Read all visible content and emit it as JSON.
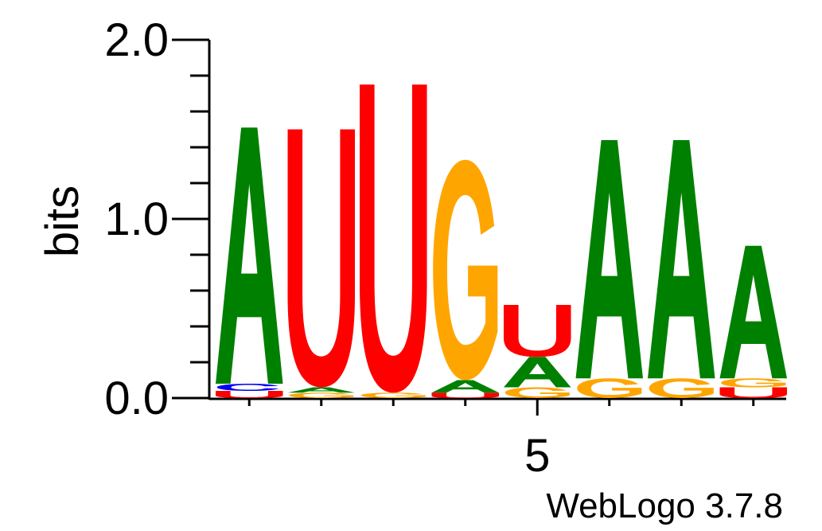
{
  "chart_data": {
    "type": "sequence-logo",
    "ylabel": "bits",
    "ylim": [
      0,
      2.0
    ],
    "y_ticks": [
      {
        "value": 0.0,
        "label": "0.0"
      },
      {
        "value": 1.0,
        "label": "1.0"
      },
      {
        "value": 2.0,
        "label": "2.0"
      }
    ],
    "x_ticks": [
      {
        "value": 5,
        "label": "5"
      }
    ],
    "colors": {
      "A": "#008000",
      "U": "#ff0000",
      "G": "#ffa500",
      "C": "#0000ff"
    },
    "positions": [
      {
        "pos": 1,
        "stack": [
          {
            "letter": "U",
            "bits": 0.04
          },
          {
            "letter": "C",
            "bits": 0.04
          },
          {
            "letter": "A",
            "bits": 1.43
          }
        ]
      },
      {
        "pos": 2,
        "stack": [
          {
            "letter": "G",
            "bits": 0.03
          },
          {
            "letter": "A",
            "bits": 0.03
          },
          {
            "letter": "U",
            "bits": 1.44
          }
        ]
      },
      {
        "pos": 3,
        "stack": [
          {
            "letter": "G",
            "bits": 0.03
          },
          {
            "letter": "U",
            "bits": 1.72
          }
        ]
      },
      {
        "pos": 4,
        "stack": [
          {
            "letter": "U",
            "bits": 0.03
          },
          {
            "letter": "A",
            "bits": 0.07
          },
          {
            "letter": "G",
            "bits": 1.23
          }
        ]
      },
      {
        "pos": 5,
        "stack": [
          {
            "letter": "G",
            "bits": 0.06
          },
          {
            "letter": "A",
            "bits": 0.17
          },
          {
            "letter": "U",
            "bits": 0.29
          }
        ]
      },
      {
        "pos": 6,
        "stack": [
          {
            "letter": "G",
            "bits": 0.11
          },
          {
            "letter": "A",
            "bits": 1.33
          }
        ]
      },
      {
        "pos": 7,
        "stack": [
          {
            "letter": "G",
            "bits": 0.11
          },
          {
            "letter": "A",
            "bits": 1.33
          }
        ]
      },
      {
        "pos": 8,
        "stack": [
          {
            "letter": "U",
            "bits": 0.06
          },
          {
            "letter": "G",
            "bits": 0.05
          },
          {
            "letter": "A",
            "bits": 0.74
          }
        ]
      }
    ]
  },
  "footer": {
    "credit": "WebLogo 3.7.8"
  }
}
